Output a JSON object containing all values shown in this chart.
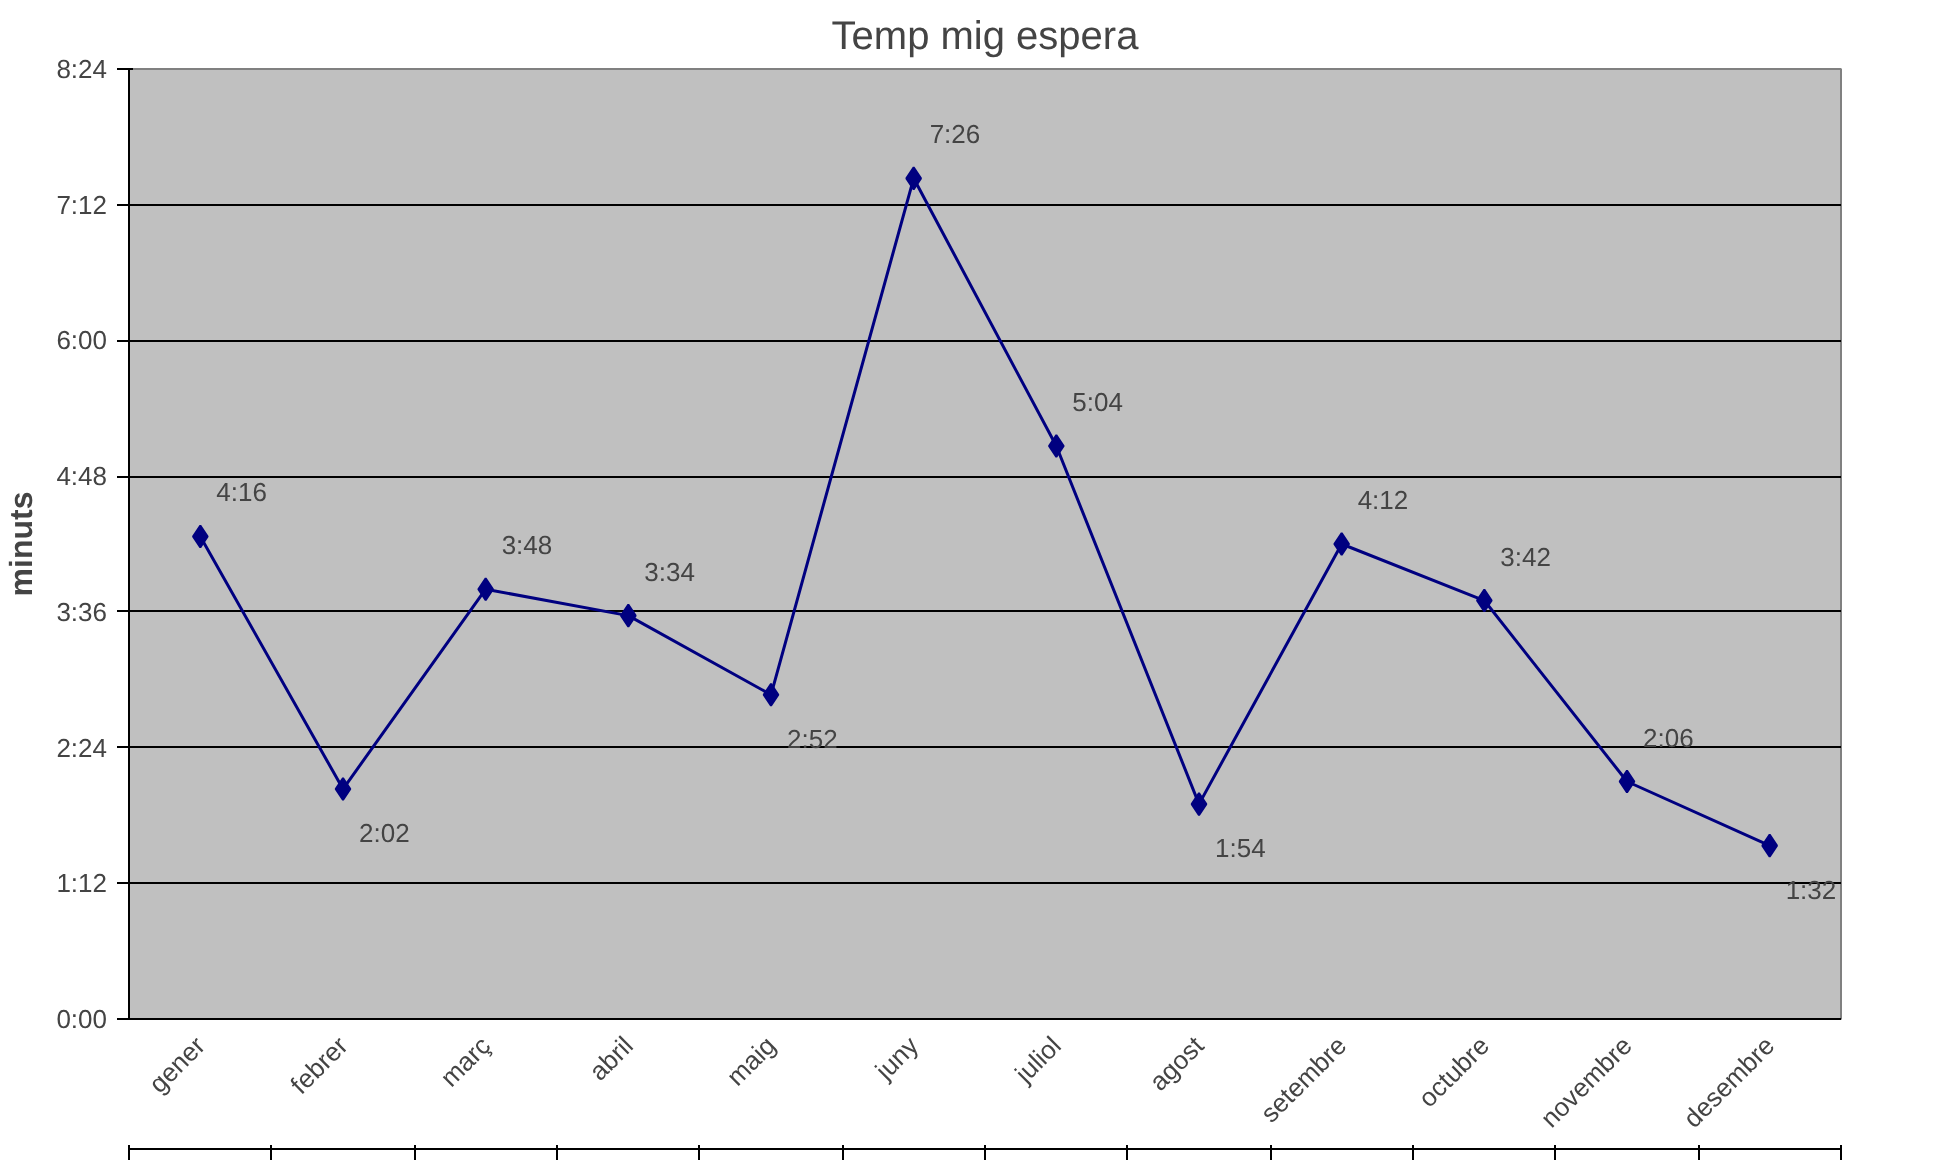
{
  "chart_data": {
    "type": "line",
    "title": "Temp mig espera",
    "ylabel": "minuts",
    "categories": [
      "gener",
      "febrer",
      "març",
      "abril",
      "maig",
      "juny",
      "juliol",
      "agost",
      "setembre",
      "octubre",
      "novembre",
      "desembre"
    ],
    "series": [
      {
        "color": "#000080",
        "values": [
          256,
          122,
          228,
          214,
          172,
          446,
          304,
          114,
          252,
          222,
          126,
          92
        ],
        "value_labels": [
          "4:16",
          "2:02",
          "3:48",
          "3:34",
          "2:52",
          "7:26",
          "5:04",
          "1:54",
          "4:12",
          "3:42",
          "2:06",
          "1:32"
        ]
      }
    ],
    "ylim": [
      0,
      504
    ],
    "yticks": [
      {
        "value": 0,
        "label": "0:00"
      },
      {
        "value": 72,
        "label": "1:12"
      },
      {
        "value": 144,
        "label": "2:24"
      },
      {
        "value": 216,
        "label": "3:36"
      },
      {
        "value": 288,
        "label": "4:48"
      },
      {
        "value": 360,
        "label": "6:00"
      },
      {
        "value": 432,
        "label": "7:12"
      },
      {
        "value": 504,
        "label": "8:24"
      }
    ],
    "grid": "y",
    "marker": "diamond",
    "line_style": "solid"
  }
}
